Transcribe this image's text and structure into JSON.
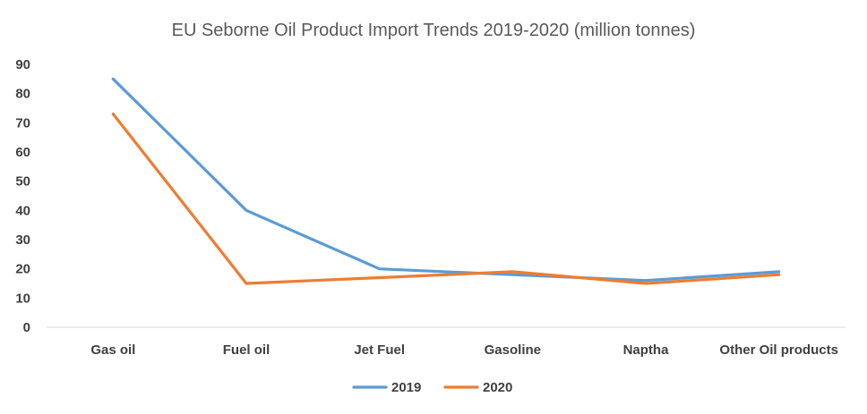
{
  "chart_data": {
    "type": "line",
    "title": "EU Seborne Oil Product Import Trends 2019-2020 (million tonnes)",
    "xlabel": "",
    "ylabel": "",
    "categories": [
      "Gas oil",
      "Fuel oil",
      "Jet Fuel",
      "Gasoline",
      "Naptha",
      "Other Oil products"
    ],
    "ylim": [
      0,
      90
    ],
    "yticks": [
      0,
      10,
      20,
      30,
      40,
      50,
      60,
      70,
      80,
      90
    ],
    "grid": false,
    "legend": "bottom",
    "series": [
      {
        "name": "2019",
        "color": "#5B9BD5",
        "values": [
          85,
          40,
          20,
          18,
          16,
          19
        ]
      },
      {
        "name": "2020",
        "color": "#ED7D31",
        "values": [
          73,
          15,
          17,
          19,
          15,
          18
        ]
      }
    ]
  }
}
